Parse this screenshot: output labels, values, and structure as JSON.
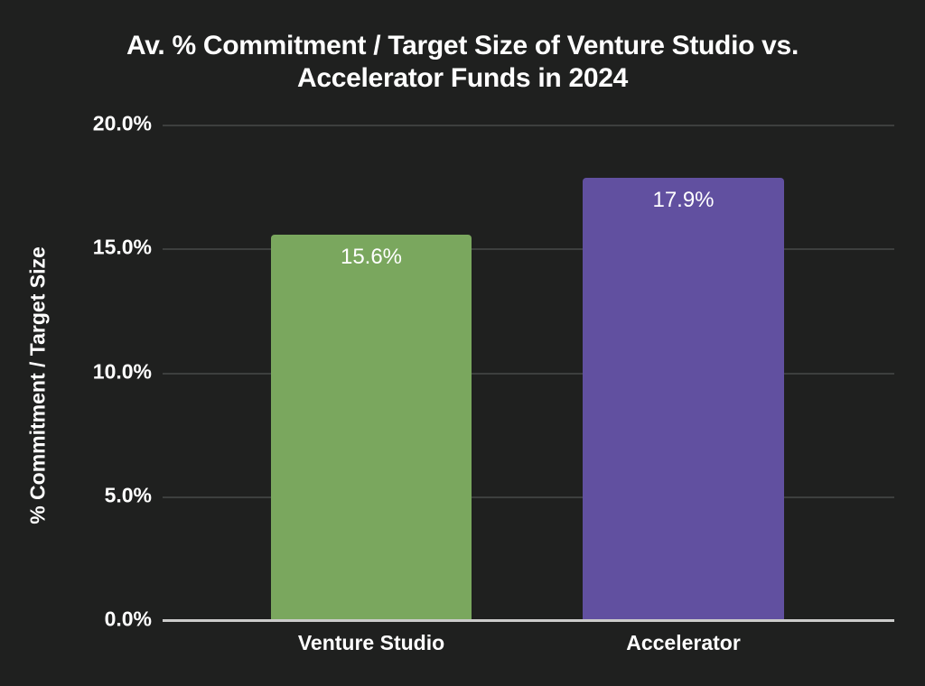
{
  "colors": {
    "background": "#1f201f",
    "gridline": "#3d3f3e",
    "axis_line": "#cbcbca",
    "text": "#ffffff",
    "venture_studio_bar": "#7aa75e",
    "accelerator_bar": "#6150a0"
  },
  "chart_data": {
    "type": "bar",
    "title": "Av. % Commitment / Target Size of Venture Studio vs. Accelerator Funds in 2024",
    "title_lines": [
      "Av. % Commitment / Target Size of Venture Studio vs.",
      "Accelerator Funds in 2024"
    ],
    "ylabel": "% Commitment / Target Size",
    "xlabel": "",
    "categories": [
      "Venture Studio",
      "Accelerator"
    ],
    "values": [
      15.6,
      17.9
    ],
    "value_labels": [
      "15.6%",
      "17.9%"
    ],
    "bar_colors": [
      "#7aa75e",
      "#6150a0"
    ],
    "ylim": [
      0,
      20
    ],
    "yticks": [
      {
        "value": 0,
        "label": "0.0%"
      },
      {
        "value": 5,
        "label": "5.0%"
      },
      {
        "value": 10,
        "label": "10.0%"
      },
      {
        "value": 15,
        "label": "15.0%"
      },
      {
        "value": 20,
        "label": "20.0%"
      }
    ],
    "grid": "horizontal",
    "legend": "none"
  }
}
